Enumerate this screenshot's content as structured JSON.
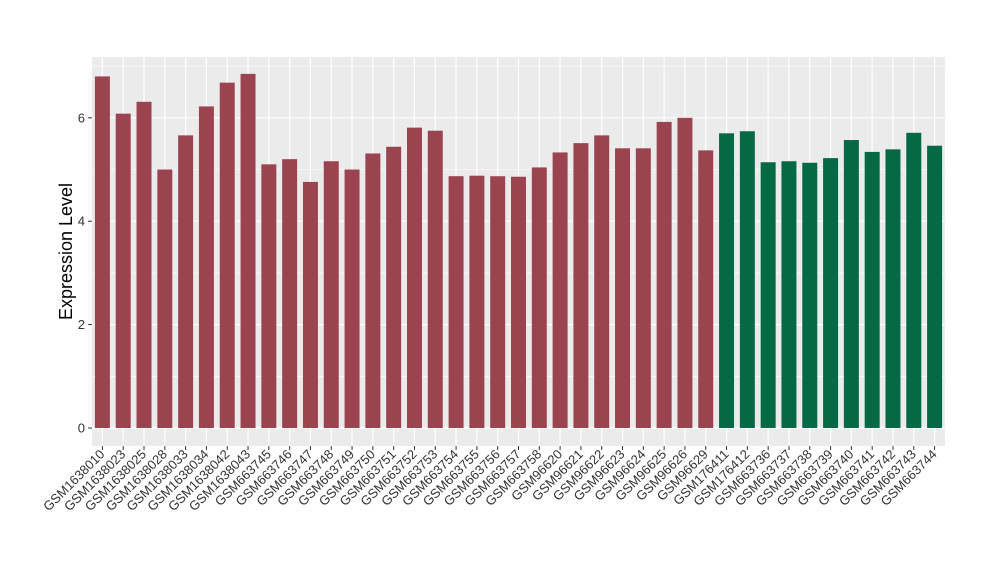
{
  "chart_data": {
    "type": "bar",
    "title": "",
    "xlabel": "",
    "ylabel": "Expression Level",
    "ylim": [
      0,
      7.1
    ],
    "yticks": [
      0,
      2,
      4,
      6
    ],
    "grid": true,
    "colors": {
      "group1": "#9b4450",
      "group2": "#046944",
      "panel": "#ebebeb",
      "grid": "#ffffff"
    },
    "categories": [
      "GSM1638010",
      "GSM1638023",
      "GSM1638025",
      "GSM1638028",
      "GSM1638033",
      "GSM1638034",
      "GSM1638042",
      "GSM1638043",
      "GSM663745",
      "GSM663746",
      "GSM663747",
      "GSM663748",
      "GSM663749",
      "GSM663750",
      "GSM663751",
      "GSM663752",
      "GSM663753",
      "GSM663754",
      "GSM663755",
      "GSM663756",
      "GSM663757",
      "GSM663758",
      "GSM96620",
      "GSM96621",
      "GSM96622",
      "GSM96623",
      "GSM96624",
      "GSM96625",
      "GSM96626",
      "GSM96629",
      "GSM176411",
      "GSM176412",
      "GSM663736",
      "GSM663737",
      "GSM663738",
      "GSM663739",
      "GSM663740",
      "GSM663741",
      "GSM663742",
      "GSM663743",
      "GSM663744"
    ],
    "values": [
      6.8,
      6.08,
      6.31,
      5.0,
      5.66,
      6.22,
      6.68,
      6.85,
      5.1,
      5.2,
      4.76,
      5.16,
      5.0,
      5.31,
      5.44,
      5.81,
      5.75,
      4.87,
      4.88,
      4.87,
      4.86,
      5.04,
      5.33,
      5.51,
      5.66,
      5.41,
      5.41,
      5.92,
      6.0,
      5.37,
      5.7,
      5.74,
      5.14,
      5.16,
      5.13,
      5.22,
      5.57,
      5.34,
      5.39,
      5.71,
      5.46
    ],
    "groups": [
      1,
      1,
      1,
      1,
      1,
      1,
      1,
      1,
      1,
      1,
      1,
      1,
      1,
      1,
      1,
      1,
      1,
      1,
      1,
      1,
      1,
      1,
      1,
      1,
      1,
      1,
      1,
      1,
      1,
      1,
      2,
      2,
      2,
      2,
      2,
      2,
      2,
      2,
      2,
      2,
      2
    ]
  }
}
